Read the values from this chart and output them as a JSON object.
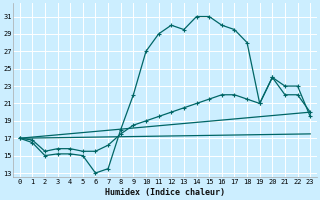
{
  "xlabel": "Humidex (Indice chaleur)",
  "bg_color": "#cceeff",
  "grid_color": "#ffffff",
  "line_color": "#006666",
  "xlim": [
    -0.5,
    23.5
  ],
  "ylim": [
    12.5,
    32.5
  ],
  "yticks": [
    13,
    15,
    17,
    19,
    21,
    23,
    25,
    27,
    29,
    31
  ],
  "xticks": [
    0,
    1,
    2,
    3,
    4,
    5,
    6,
    7,
    8,
    9,
    10,
    11,
    12,
    13,
    14,
    15,
    16,
    17,
    18,
    19,
    20,
    21,
    22,
    23
  ],
  "line1_x": [
    0,
    1,
    2,
    3,
    4,
    5,
    6,
    7,
    8,
    9,
    10,
    11,
    12,
    13,
    14,
    15,
    16,
    17,
    18,
    19,
    20,
    21,
    22,
    23
  ],
  "line1_y": [
    17,
    16.5,
    15,
    15.2,
    15.2,
    15,
    13,
    13.5,
    18,
    22,
    27,
    29,
    30,
    29.5,
    31,
    31,
    30,
    29.5,
    28,
    21,
    24,
    23,
    23,
    19.5
  ],
  "line2_x": [
    0,
    1,
    2,
    3,
    4,
    5,
    6,
    7,
    8,
    9,
    10,
    11,
    12,
    13,
    14,
    15,
    16,
    17,
    18,
    19,
    20,
    21,
    22,
    23
  ],
  "line2_y": [
    17,
    16.8,
    15.5,
    15.8,
    15.8,
    15.5,
    15.5,
    16.2,
    17.5,
    18.5,
    19,
    19.5,
    20,
    20.5,
    21,
    21.5,
    22,
    22,
    21.5,
    21,
    24,
    22,
    22,
    20
  ],
  "line3_x": [
    0,
    23
  ],
  "line3_y": [
    17,
    20
  ],
  "line4_x": [
    0,
    23
  ],
  "line4_y": [
    17,
    17.5
  ]
}
